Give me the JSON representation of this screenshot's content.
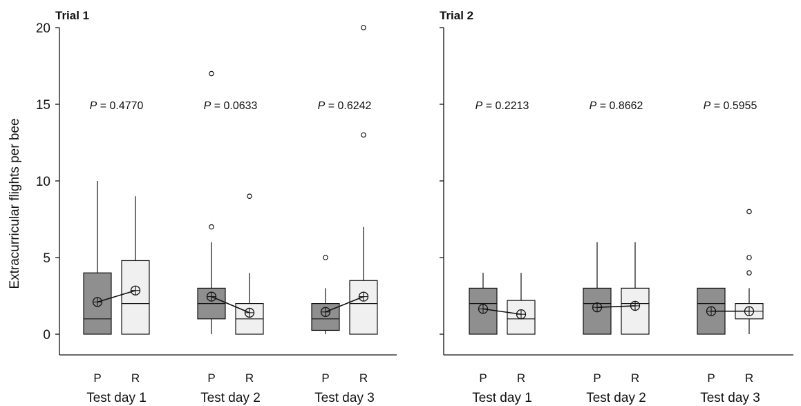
{
  "figure": {
    "ylabel": "Extracurricular flights per bee",
    "colors": {
      "P": "#8f8f8f",
      "R": "#f0f0f0",
      "stroke": "#111111"
    }
  },
  "chart_data": [
    {
      "type": "box",
      "title": "Trial 1",
      "ylabel": "Extracurricular flights per bee",
      "ylim": [
        0,
        20
      ],
      "yticks": [
        0,
        5,
        10,
        15,
        20
      ],
      "groups": [
        {
          "label": "Test day 1",
          "p_value": "0.4770",
          "boxes": [
            {
              "label": "P",
              "whisker_low": 0,
              "q1": 0,
              "median": 1,
              "q3": 4,
              "whisker_high": 10,
              "mean": 2.1,
              "outliers": []
            },
            {
              "label": "R",
              "whisker_low": 0,
              "q1": 0,
              "median": 2,
              "q3": 4.8,
              "whisker_high": 9,
              "mean": 2.85,
              "outliers": []
            }
          ]
        },
        {
          "label": "Test day 2",
          "p_value": "0.0633",
          "boxes": [
            {
              "label": "P",
              "whisker_low": 0,
              "q1": 1,
              "median": 2,
              "q3": 3,
              "whisker_high": 6,
              "mean": 2.45,
              "outliers": [
                7,
                17
              ]
            },
            {
              "label": "R",
              "whisker_low": 0,
              "q1": 0,
              "median": 1,
              "q3": 2,
              "whisker_high": 4,
              "mean": 1.4,
              "outliers": [
                9
              ]
            }
          ]
        },
        {
          "label": "Test day 3",
          "p_value": "0.6242",
          "boxes": [
            {
              "label": "P",
              "whisker_low": 0,
              "q1": 0.25,
              "median": 1,
              "q3": 2,
              "whisker_high": 3,
              "mean": 1.45,
              "outliers": [
                5
              ]
            },
            {
              "label": "R",
              "whisker_low": 0,
              "q1": 0,
              "median": 2,
              "q3": 3.5,
              "whisker_high": 7,
              "mean": 2.45,
              "outliers": [
                13,
                20
              ]
            }
          ]
        }
      ]
    },
    {
      "type": "box",
      "title": "Trial 2",
      "ylim": [
        0,
        20
      ],
      "yticks": [
        0,
        5,
        10,
        15,
        20
      ],
      "groups": [
        {
          "label": "Test day 1",
          "p_value": "0.2213",
          "boxes": [
            {
              "label": "P",
              "whisker_low": 0,
              "q1": 0,
              "median": 2,
              "q3": 3,
              "whisker_high": 4,
              "mean": 1.65,
              "outliers": []
            },
            {
              "label": "R",
              "whisker_low": 0,
              "q1": 0,
              "median": 1,
              "q3": 2.2,
              "whisker_high": 4,
              "mean": 1.3,
              "outliers": []
            }
          ]
        },
        {
          "label": "Test day 2",
          "p_value": "0.8662",
          "boxes": [
            {
              "label": "P",
              "whisker_low": 0,
              "q1": 0,
              "median": 2,
              "q3": 3,
              "whisker_high": 6,
              "mean": 1.75,
              "outliers": []
            },
            {
              "label": "R",
              "whisker_low": 0,
              "q1": 0,
              "median": 2,
              "q3": 3,
              "whisker_high": 6,
              "mean": 1.85,
              "outliers": []
            }
          ]
        },
        {
          "label": "Test day 3",
          "p_value": "0.5955",
          "boxes": [
            {
              "label": "P",
              "whisker_low": 0,
              "q1": 0,
              "median": 2,
              "q3": 3,
              "whisker_high": 3,
              "mean": 1.5,
              "outliers": []
            },
            {
              "label": "R",
              "whisker_low": 0,
              "q1": 1,
              "median": 1.5,
              "q3": 2,
              "whisker_high": 3,
              "mean": 1.5,
              "outliers": [
                4,
                5,
                8
              ]
            }
          ]
        }
      ]
    }
  ]
}
